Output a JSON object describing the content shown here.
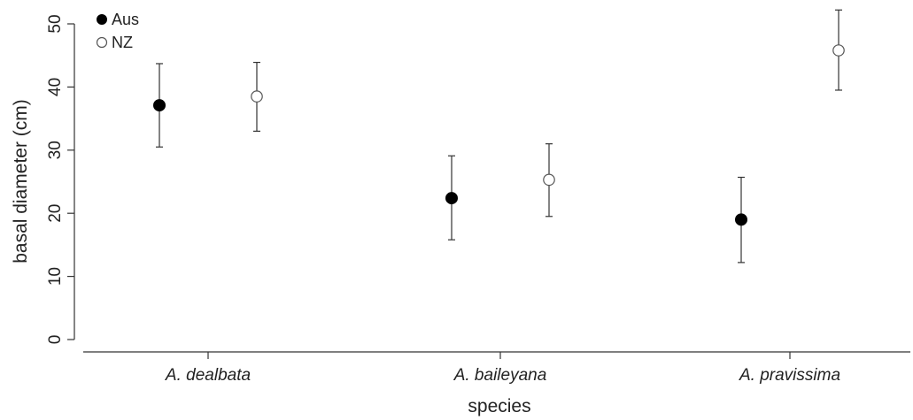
{
  "chart_data": {
    "type": "scatter",
    "title": "",
    "xlabel": "species",
    "ylabel": "basal diameter (cm)",
    "categories": [
      "A. dealbata",
      "A. baileyana",
      "A. pravissima"
    ],
    "ylim": [
      0,
      50
    ],
    "yticks": [
      "0",
      "10",
      "20",
      "30",
      "40",
      "50"
    ],
    "error_bars": true,
    "grid": false,
    "legend_position": "top-left",
    "series": [
      {
        "name": "Aus",
        "marker": "filled-circle",
        "color": "#000000",
        "values": [
          37.1,
          22.4,
          19.0
        ],
        "lower": [
          30.5,
          15.8,
          12.2
        ],
        "upper": [
          43.7,
          29.1,
          25.7
        ]
      },
      {
        "name": "NZ",
        "marker": "open-circle",
        "color": "#555555",
        "values": [
          38.5,
          25.3,
          45.8
        ],
        "lower": [
          33.0,
          19.5,
          39.5
        ],
        "upper": [
          43.9,
          31.0,
          52.2
        ]
      }
    ]
  }
}
